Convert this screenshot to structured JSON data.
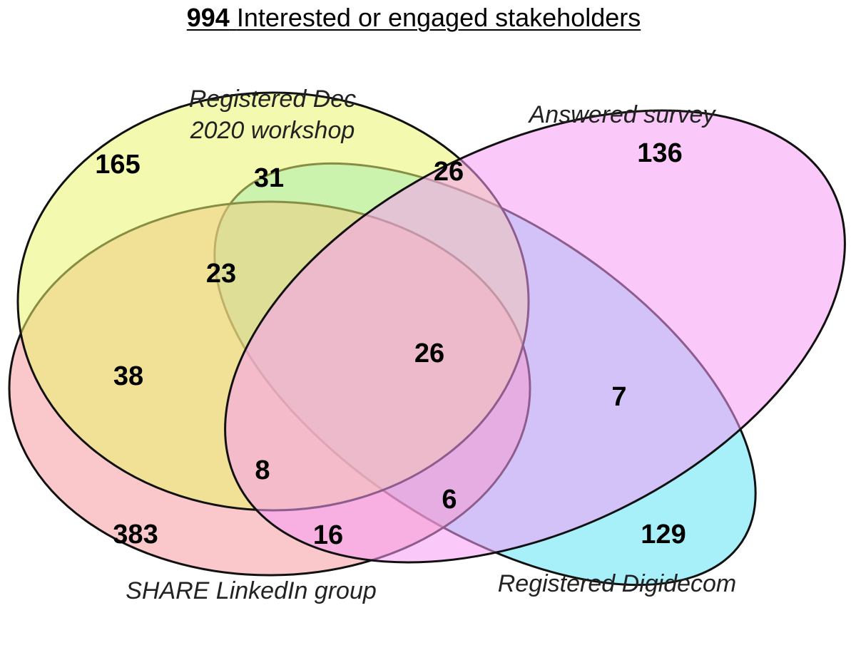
{
  "title": {
    "count": "994",
    "text": "Interested or engaged stakeholders"
  },
  "sets": [
    {
      "id": "workshop",
      "label_line1": "Registered Dec",
      "label_line2": "2020 workshop",
      "color": "#e9f56e"
    },
    {
      "id": "survey",
      "label": "Answered survey",
      "color": "#f59cf5"
    },
    {
      "id": "linkedin",
      "label": "SHARE LinkedIn group",
      "color": "#f59aa0"
    },
    {
      "id": "digidecom",
      "label": "Registered Digidecom",
      "color": "#5ee3f5"
    }
  ],
  "regions": {
    "workshop_only": "165",
    "survey_only": "136",
    "linkedin_only": "383",
    "digidecom_only": "129",
    "workshop_digidecom": "31",
    "workshop_survey": "26",
    "workshop_digidecom_linkedin": "23",
    "workshop_linkedin": "38",
    "workshop_survey_digidecom_linkedin": "26",
    "survey_digidecom": "7",
    "workshop_survey_linkedin": "8",
    "survey_digidecom_linkedin": "6",
    "survey_linkedin": "16"
  }
}
